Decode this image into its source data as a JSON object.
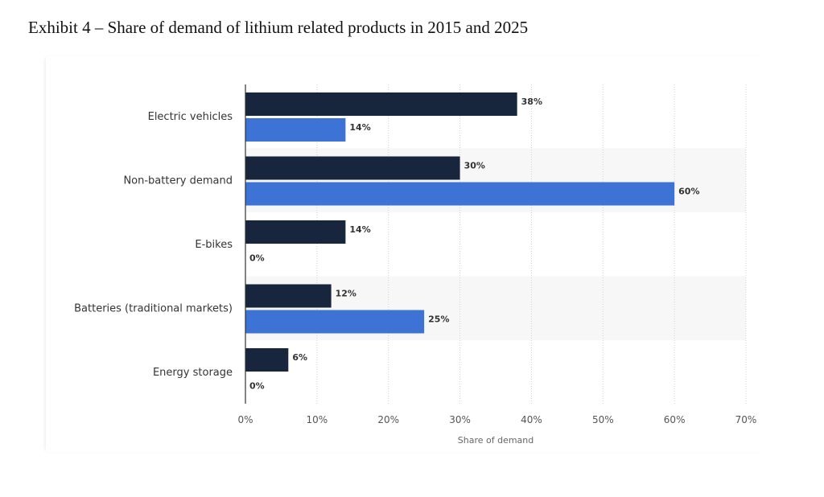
{
  "exhibit_title": "Exhibit 4 – Share of demand of lithium related products in 2015 and 2025",
  "colors": {
    "series_2015": "#18263d",
    "series_2025": "#3e73d6",
    "band": "#f7f7f7",
    "grid": "#d2d2d2",
    "axis": "#333333",
    "label_text": "#333333"
  },
  "chart_data": {
    "type": "bar",
    "orientation": "horizontal",
    "title": "",
    "xlabel": "Share of demand",
    "ylabel": "",
    "categories": [
      "Electric vehicles",
      "Non-battery demand",
      "E-bikes",
      "Batteries (traditional markets)",
      "Energy storage"
    ],
    "series": [
      {
        "values": [
          38,
          30,
          14,
          12,
          6
        ],
        "labels": [
          "38%",
          "30%",
          "14%",
          "12%",
          "6%"
        ]
      },
      {
        "values": [
          14,
          60,
          0,
          25,
          0
        ],
        "labels": [
          "14%",
          "60%",
          "0%",
          "25%",
          "0%"
        ]
      }
    ],
    "xticks": [
      0,
      10,
      20,
      30,
      40,
      50,
      60,
      70
    ],
    "xtick_labels": [
      "0%",
      "10%",
      "20%",
      "30%",
      "40%",
      "50%",
      "60%",
      "70%"
    ],
    "xlim": [
      0,
      70
    ],
    "grid": true,
    "legend": "none"
  }
}
